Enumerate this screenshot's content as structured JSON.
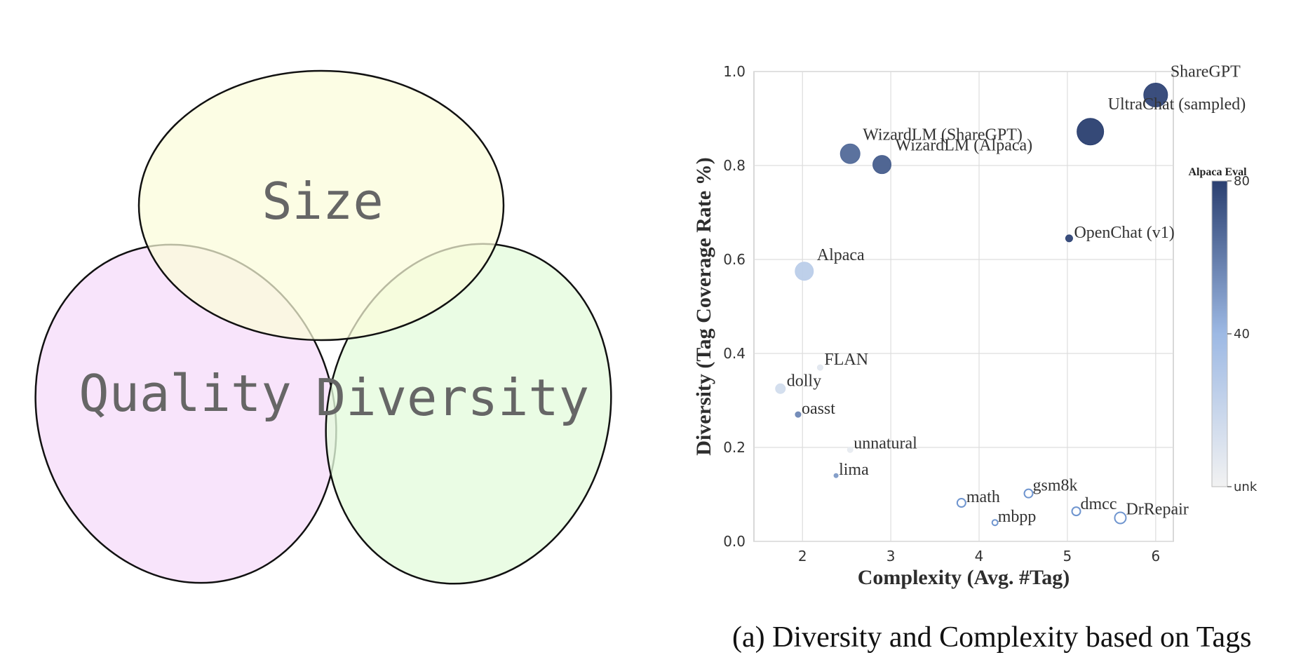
{
  "venn": {
    "circles": [
      {
        "label": "Size",
        "fill": "#fbfcd9"
      },
      {
        "label": "Quality",
        "fill": "#f6dcfa"
      },
      {
        "label": "Diversity",
        "fill": "#e4fbdc"
      }
    ]
  },
  "chart_data": {
    "type": "scatter",
    "title": "",
    "xlabel": "Complexity (Avg. #Tag)",
    "ylabel": "Diversity (Tag Coverage Rate %)",
    "xlim": [
      1.45,
      6.2
    ],
    "ylim": [
      0.0,
      1.0
    ],
    "xticks": [
      2,
      3,
      4,
      5,
      6
    ],
    "yticks": [
      0.0,
      0.2,
      0.4,
      0.6,
      0.8,
      1.0
    ],
    "grid": true,
    "size_encodes": "dataset size",
    "color_encodes": "Alpaca Eval score",
    "points": [
      {
        "name": "ShareGPT",
        "x": 6.0,
        "y": 0.95,
        "size": 17,
        "eval": 78,
        "hollow": false
      },
      {
        "name": "UltraChat (sampled)",
        "x": 5.26,
        "y": 0.872,
        "size": 19,
        "eval": 85,
        "hollow": false
      },
      {
        "name": "WizardLM (ShareGPT)",
        "x": 2.54,
        "y": 0.825,
        "size": 14,
        "eval": 66,
        "hollow": false
      },
      {
        "name": "WizardLM (Alpaca)",
        "x": 2.9,
        "y": 0.802,
        "size": 13,
        "eval": 70,
        "hollow": false
      },
      {
        "name": "OpenChat (v1)",
        "x": 5.02,
        "y": 0.645,
        "size": 5,
        "eval": 78,
        "hollow": false
      },
      {
        "name": "Alpaca",
        "x": 2.02,
        "y": 0.575,
        "size": 13,
        "eval": 26,
        "hollow": false
      },
      {
        "name": "FLAN",
        "x": 2.2,
        "y": 0.37,
        "size": 4,
        "eval": 8,
        "hollow": false
      },
      {
        "name": "dolly",
        "x": 1.75,
        "y": 0.325,
        "size": 7,
        "eval": 15,
        "hollow": false
      },
      {
        "name": "oasst",
        "x": 1.95,
        "y": 0.27,
        "size": 4,
        "eval": 56,
        "hollow": false
      },
      {
        "name": "unnatural",
        "x": 2.54,
        "y": 0.195,
        "size": 4,
        "eval": 5,
        "hollow": false
      },
      {
        "name": "lima",
        "x": 2.38,
        "y": 0.14,
        "size": 3,
        "eval": 50,
        "hollow": false
      },
      {
        "name": "math",
        "x": 3.8,
        "y": 0.082,
        "size": 6,
        "eval": 40,
        "hollow": true
      },
      {
        "name": "gsm8k",
        "x": 4.56,
        "y": 0.102,
        "size": 6,
        "eval": 40,
        "hollow": true
      },
      {
        "name": "mbpp",
        "x": 4.18,
        "y": 0.04,
        "size": 4,
        "eval": 40,
        "hollow": true
      },
      {
        "name": "dmcc",
        "x": 5.1,
        "y": 0.064,
        "size": 6,
        "eval": 40,
        "hollow": true
      },
      {
        "name": "DrRepair",
        "x": 5.6,
        "y": 0.05,
        "size": 8,
        "eval": 40,
        "hollow": true
      }
    ],
    "colorbar": {
      "title": "Alpaca Eval",
      "tick_values": [
        80,
        40,
        0
      ],
      "tick_labels": [
        "80",
        "40",
        "unk"
      ],
      "color_low": "#f2f2f2",
      "color_mid": "#9db9e4",
      "color_high": "#2a3f70"
    }
  },
  "caption": "(a) Diversity and Complexity based on Tags"
}
